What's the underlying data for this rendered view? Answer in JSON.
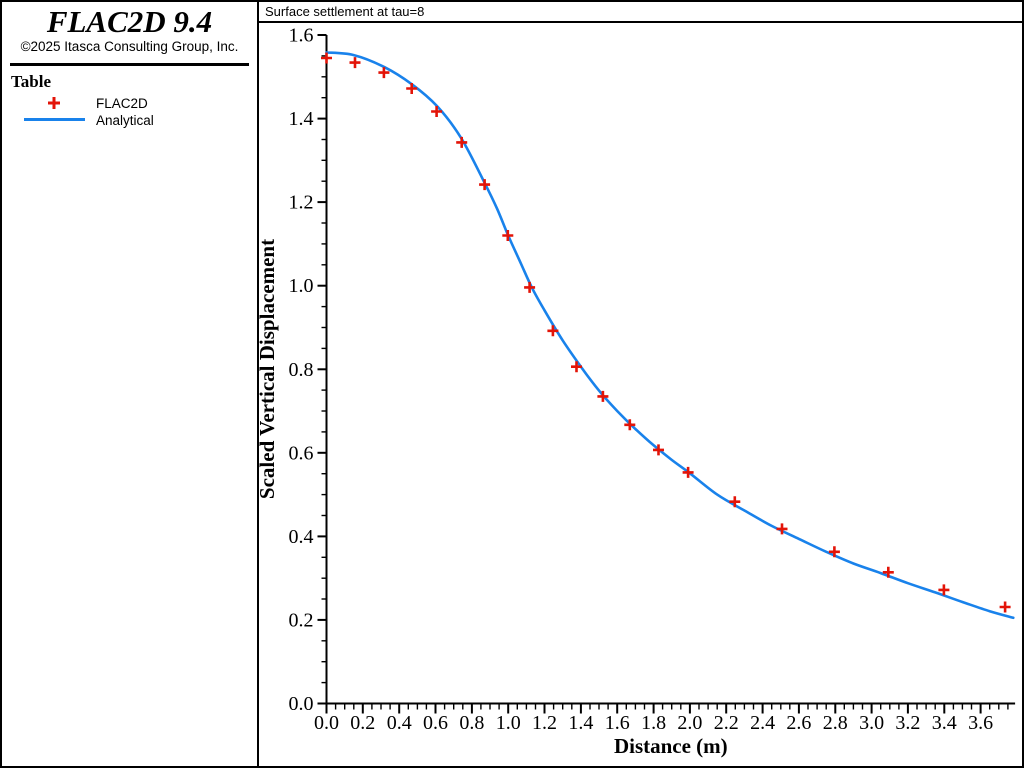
{
  "sidebar": {
    "app_title": "FLAC2D 9.4",
    "copyright": "©2025 Itasca Consulting Group, Inc.",
    "section_title": "Table",
    "legend": [
      {
        "label": "FLAC2D",
        "marker": "plus",
        "color": "#e31408"
      },
      {
        "label": "Analytical",
        "marker": "line",
        "color": "#1982eb"
      }
    ]
  },
  "chart_data": {
    "type": "line",
    "title": "Surface settlement at tau=8",
    "xlabel": "Distance (m)",
    "ylabel": "Scaled Vertical Displacement",
    "xlim": [
      0,
      3.8
    ],
    "ylim": [
      0,
      1.6
    ],
    "x_major_tick": 0.2,
    "x_minor_tick": 0.05,
    "y_major_tick": 0.2,
    "y_minor_tick": 0.05,
    "x_last_tick_label": 3.6,
    "grid": false,
    "legend_position": "left-panel",
    "series": [
      {
        "name": "FLAC2D",
        "type": "scatter",
        "marker": "plus",
        "color": "#e31408",
        "points": [
          [
            0.0,
            1.545
          ],
          [
            0.157,
            1.534
          ],
          [
            0.316,
            1.51
          ],
          [
            0.469,
            1.472
          ],
          [
            0.606,
            1.417
          ],
          [
            0.744,
            1.343
          ],
          [
            0.87,
            1.242
          ],
          [
            0.998,
            1.12
          ],
          [
            1.118,
            0.996
          ],
          [
            1.246,
            0.892
          ],
          [
            1.376,
            0.806
          ],
          [
            1.521,
            0.735
          ],
          [
            1.669,
            0.667
          ],
          [
            1.827,
            0.607
          ],
          [
            1.99,
            0.553
          ],
          [
            2.247,
            0.483
          ],
          [
            2.507,
            0.418
          ],
          [
            2.795,
            0.363
          ],
          [
            3.092,
            0.314
          ],
          [
            3.398,
            0.272
          ],
          [
            3.735,
            0.231
          ]
        ]
      },
      {
        "name": "Analytical",
        "type": "line",
        "color": "#1982eb",
        "points": [
          [
            0.0,
            1.558
          ],
          [
            0.15,
            1.552
          ],
          [
            0.32,
            1.523
          ],
          [
            0.47,
            1.482
          ],
          [
            0.61,
            1.429
          ],
          [
            0.74,
            1.354
          ],
          [
            0.87,
            1.246
          ],
          [
            0.94,
            1.183
          ],
          [
            1.0,
            1.12
          ],
          [
            1.07,
            1.053
          ],
          [
            1.13,
            0.996
          ],
          [
            1.2,
            0.941
          ],
          [
            1.3,
            0.869
          ],
          [
            1.4,
            0.806
          ],
          [
            1.5,
            0.749
          ],
          [
            1.6,
            0.7
          ],
          [
            1.7,
            0.657
          ],
          [
            1.8,
            0.618
          ],
          [
            1.9,
            0.583
          ],
          [
            2.0,
            0.551
          ],
          [
            2.15,
            0.5
          ],
          [
            2.3,
            0.462
          ],
          [
            2.45,
            0.425
          ],
          [
            2.6,
            0.394
          ],
          [
            2.75,
            0.363
          ],
          [
            2.9,
            0.335
          ],
          [
            3.05,
            0.312
          ],
          [
            3.2,
            0.288
          ],
          [
            3.35,
            0.266
          ],
          [
            3.5,
            0.243
          ],
          [
            3.65,
            0.221
          ],
          [
            3.78,
            0.205
          ]
        ]
      }
    ]
  }
}
